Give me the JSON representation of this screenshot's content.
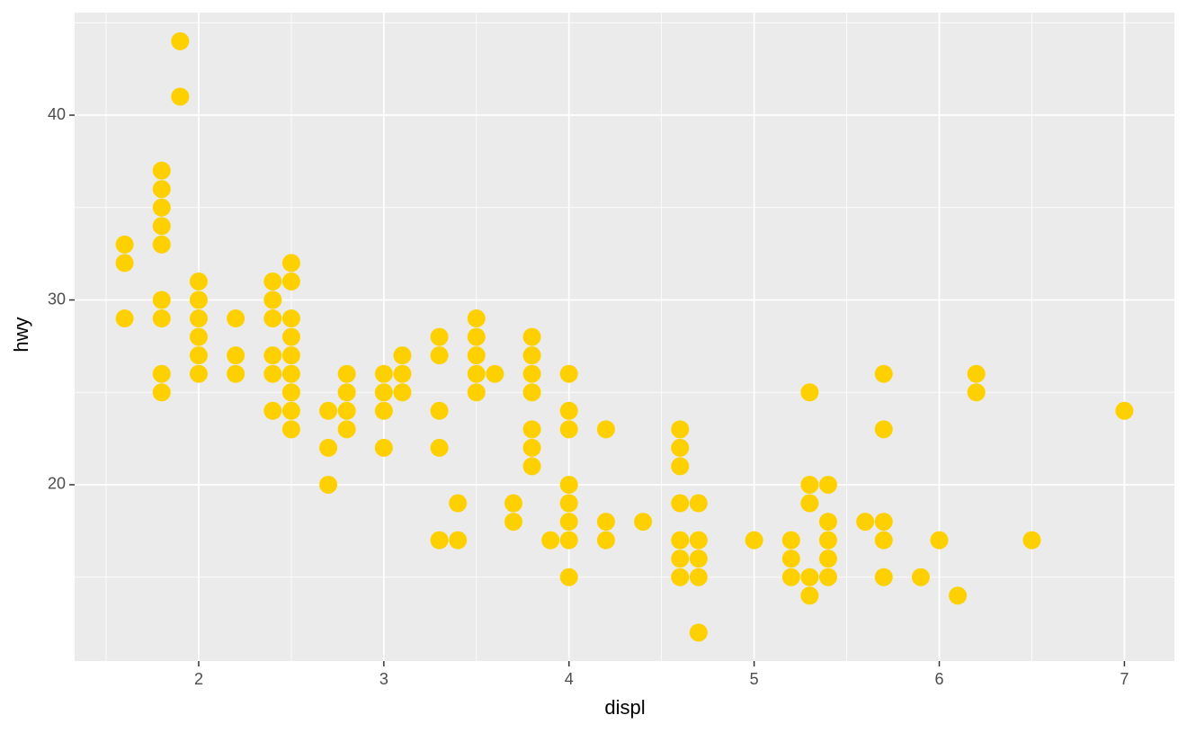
{
  "chart_data": {
    "type": "scatter",
    "x_label": "displ",
    "y_label": "hwy",
    "color": "#ffd000",
    "x": [
      1.6,
      1.6,
      1.6,
      1.8,
      1.8,
      1.8,
      1.8,
      1.8,
      1.8,
      1.8,
      1.8,
      1.8,
      1.9,
      1.9,
      2.0,
      2.0,
      2.0,
      2.0,
      2.0,
      2.0,
      2.2,
      2.2,
      2.2,
      2.4,
      2.4,
      2.4,
      2.4,
      2.4,
      2.4,
      2.5,
      2.5,
      2.5,
      2.5,
      2.5,
      2.5,
      2.5,
      2.5,
      2.5,
      2.7,
      2.7,
      2.7,
      2.8,
      2.8,
      2.8,
      2.8,
      3.0,
      3.0,
      3.0,
      3.0,
      3.1,
      3.1,
      3.1,
      3.3,
      3.3,
      3.3,
      3.3,
      3.3,
      3.4,
      3.4,
      3.5,
      3.5,
      3.5,
      3.5,
      3.5,
      3.6,
      3.7,
      3.7,
      3.8,
      3.8,
      3.8,
      3.8,
      3.8,
      3.8,
      3.8,
      3.9,
      4.0,
      4.0,
      4.0,
      4.0,
      4.0,
      4.0,
      4.0,
      4.0,
      4.2,
      4.2,
      4.2,
      4.4,
      4.6,
      4.6,
      4.6,
      4.6,
      4.6,
      4.6,
      4.6,
      4.7,
      4.7,
      4.7,
      4.7,
      4.7,
      5.0,
      5.2,
      5.2,
      5.2,
      5.3,
      5.3,
      5.3,
      5.3,
      5.3,
      5.4,
      5.4,
      5.4,
      5.4,
      5.4,
      5.6,
      5.7,
      5.7,
      5.7,
      5.7,
      5.7,
      5.9,
      6.0,
      6.1,
      6.2,
      6.2,
      6.5,
      7.0
    ],
    "y": [
      33,
      32,
      29,
      37,
      36,
      35,
      34,
      33,
      30,
      29,
      26,
      25,
      44,
      41,
      31,
      30,
      29,
      28,
      27,
      26,
      29,
      27,
      26,
      31,
      30,
      29,
      27,
      26,
      24,
      32,
      31,
      29,
      28,
      27,
      26,
      25,
      24,
      23,
      24,
      22,
      20,
      26,
      25,
      24,
      23,
      26,
      25,
      24,
      22,
      27,
      26,
      25,
      28,
      27,
      24,
      22,
      17,
      19,
      17,
      29,
      28,
      27,
      26,
      25,
      26,
      19,
      18,
      28,
      27,
      26,
      25,
      23,
      22,
      21,
      17,
      26,
      24,
      23,
      20,
      19,
      18,
      17,
      15,
      23,
      18,
      17,
      18,
      23,
      22,
      21,
      19,
      17,
      16,
      15,
      19,
      17,
      16,
      15,
      12,
      17,
      17,
      16,
      15,
      25,
      20,
      19,
      15,
      14,
      20,
      18,
      17,
      16,
      15,
      18,
      26,
      23,
      18,
      17,
      15,
      15,
      17,
      14,
      26,
      25,
      17,
      24
    ],
    "xlim": [
      1.33,
      7.27
    ],
    "ylim": [
      10.46,
      45.55
    ],
    "xticks": [
      2,
      3,
      4,
      5,
      6,
      7
    ],
    "yticks": [
      20,
      30,
      40
    ],
    "minor_xticks": [
      1.5,
      2.5,
      3.5,
      4.5,
      5.5,
      6.5
    ],
    "minor_yticks": [
      15,
      25,
      35,
      45
    ],
    "grid": true
  }
}
